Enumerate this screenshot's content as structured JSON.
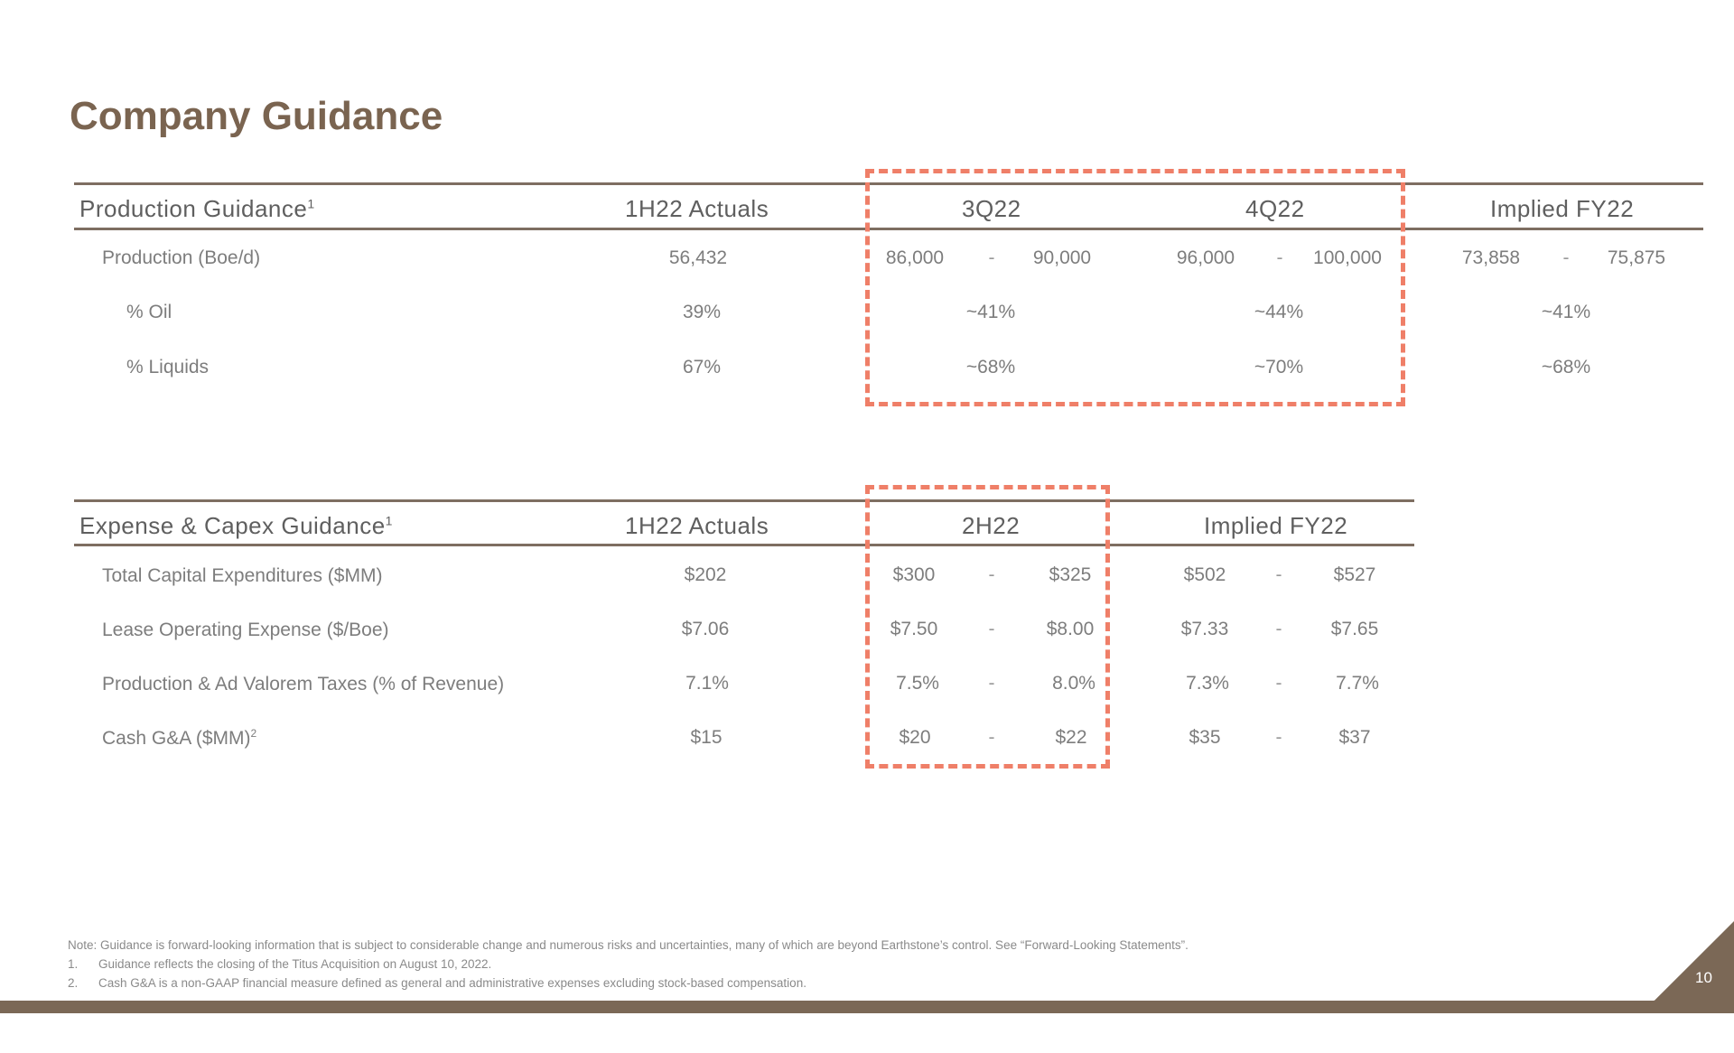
{
  "title": "Company Guidance",
  "production": {
    "header": {
      "label": "Production Guidance",
      "label_sup": "1",
      "actuals": "1H22 Actuals",
      "q3": "3Q22",
      "q4": "4Q22",
      "implied": "Implied FY22"
    },
    "rows": [
      {
        "label": "Production (Boe/d)",
        "actuals": "56,432",
        "q3_low": "86,000",
        "q3_high": "90,000",
        "q4_low": "96,000",
        "q4_high": "100,000",
        "fy_low": "73,858",
        "fy_high": "75,875"
      },
      {
        "label": "% Oil",
        "actuals": "39%",
        "q3": "~41%",
        "q4": "~44%",
        "fy": "~41%"
      },
      {
        "label": "% Liquids",
        "actuals": "67%",
        "q3": "~68%",
        "q4": "~70%",
        "fy": "~68%"
      }
    ]
  },
  "expense": {
    "header": {
      "label": "Expense & Capex Guidance",
      "label_sup": "1",
      "actuals": "1H22 Actuals",
      "h2": "2H22",
      "implied": "Implied FY22"
    },
    "rows": [
      {
        "label": "Total Capital Expenditures ($MM)",
        "label_sup": "",
        "actuals": "$202",
        "h2_low": "$300",
        "h2_high": "$325",
        "fy_low": "$502",
        "fy_high": "$527"
      },
      {
        "label": "Lease Operating Expense ($/Boe)",
        "label_sup": "",
        "actuals": "$7.06",
        "h2_low": "$7.50",
        "h2_high": "$8.00",
        "fy_low": "$7.33",
        "fy_high": "$7.65"
      },
      {
        "label": "Production & Ad Valorem Taxes (% of Revenue)",
        "label_sup": "",
        "actuals": "7.1%",
        "h2_low": "7.5%",
        "h2_high": "8.0%",
        "fy_low": "7.3%",
        "fy_high": "7.7%"
      },
      {
        "label": "Cash G&A ($MM)",
        "label_sup": "2",
        "actuals": "$15",
        "h2_low": "$20",
        "h2_high": "$22",
        "fy_low": "$35",
        "fy_high": "$37"
      }
    ]
  },
  "range_separator": "-",
  "footnotes": {
    "note": "Note: Guidance is forward-looking information that is subject to considerable change and numerous risks and uncertainties, many of which are beyond Earthstone’s control. See “Forward-Looking Statements”.",
    "items": [
      {
        "num": "1.",
        "text": "Guidance reflects the closing of the Titus Acquisition on August 10, 2022."
      },
      {
        "num": "2.",
        "text": "Cash G&A is a non-GAAP financial measure defined as general and administrative expenses excluding stock-based compensation."
      }
    ]
  },
  "page_number": "10",
  "colors": {
    "brand_brown": "#7b6856",
    "title_brown": "#7a6450",
    "highlight_dash": "#ef7f68"
  }
}
